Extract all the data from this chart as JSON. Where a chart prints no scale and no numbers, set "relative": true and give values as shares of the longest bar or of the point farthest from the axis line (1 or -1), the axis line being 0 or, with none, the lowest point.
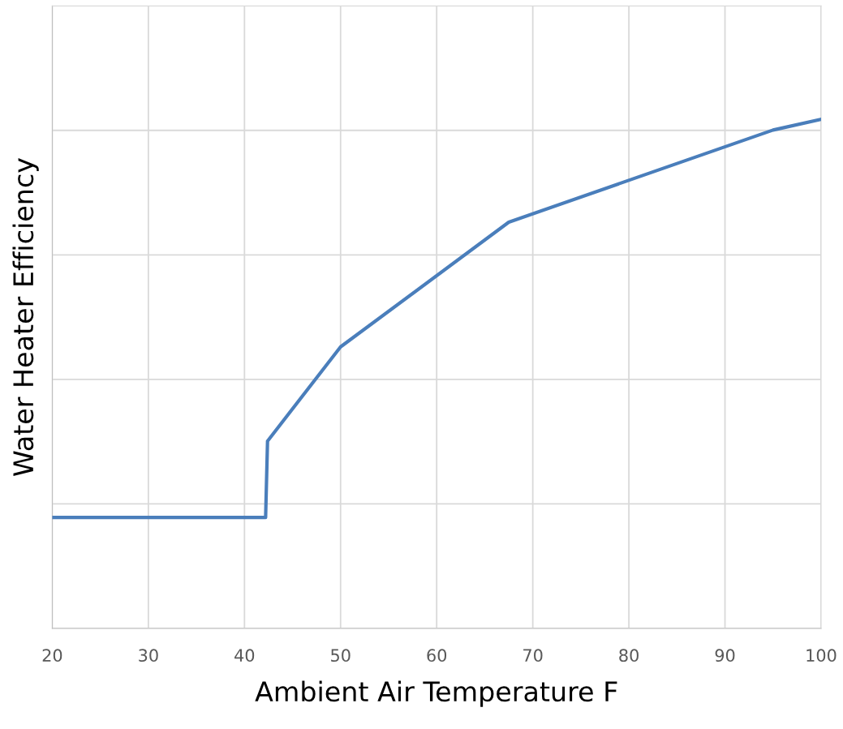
{
  "chart_data": {
    "type": "line",
    "relative": true,
    "xlabel": "Ambient Air Temperature F",
    "ylabel": "Water Heater Efficiency",
    "x": [
      20,
      42.2,
      42.4,
      50,
      67.5,
      95,
      100
    ],
    "series": [
      {
        "color": "#4a7ebb",
        "values": [
          0.218,
          0.218,
          0.368,
          0.553,
          0.798,
          0.979,
          1
        ]
      }
    ],
    "xlim": [
      20,
      100
    ],
    "xticks": [
      20,
      30,
      40,
      50,
      60,
      70,
      80,
      90,
      100
    ],
    "grid": true,
    "marker": "none",
    "line_style": "solid"
  }
}
